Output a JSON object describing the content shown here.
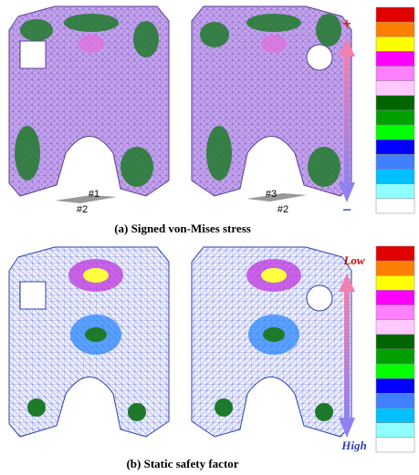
{
  "panel_a": {
    "caption": "(a) Signed von-Mises stress",
    "scale_top": "+",
    "scale_bottom": "−",
    "point_labels": [
      "#1",
      "#2",
      "#3",
      "#2"
    ],
    "scale_colors": [
      "#e00000",
      "#ff8000",
      "#ffff00",
      "#ff00ff",
      "#ff80ff",
      "#ffc8ff",
      "#006400",
      "#00a000",
      "#00ff00",
      "#0000ff",
      "#4080ff",
      "#00c0ff",
      "#90ffff",
      "#ffffff"
    ]
  },
  "panel_b": {
    "caption": "(b) Static safety factor",
    "scale_top": "Low",
    "scale_bottom": "High",
    "scale_colors": [
      "#e00000",
      "#ff8000",
      "#ffff00",
      "#ff00ff",
      "#ff80ff",
      "#ffc8ff",
      "#006400",
      "#00a000",
      "#00ff00",
      "#0000ff",
      "#4080ff",
      "#00c0ff",
      "#90ffff",
      "#ffffff"
    ]
  }
}
